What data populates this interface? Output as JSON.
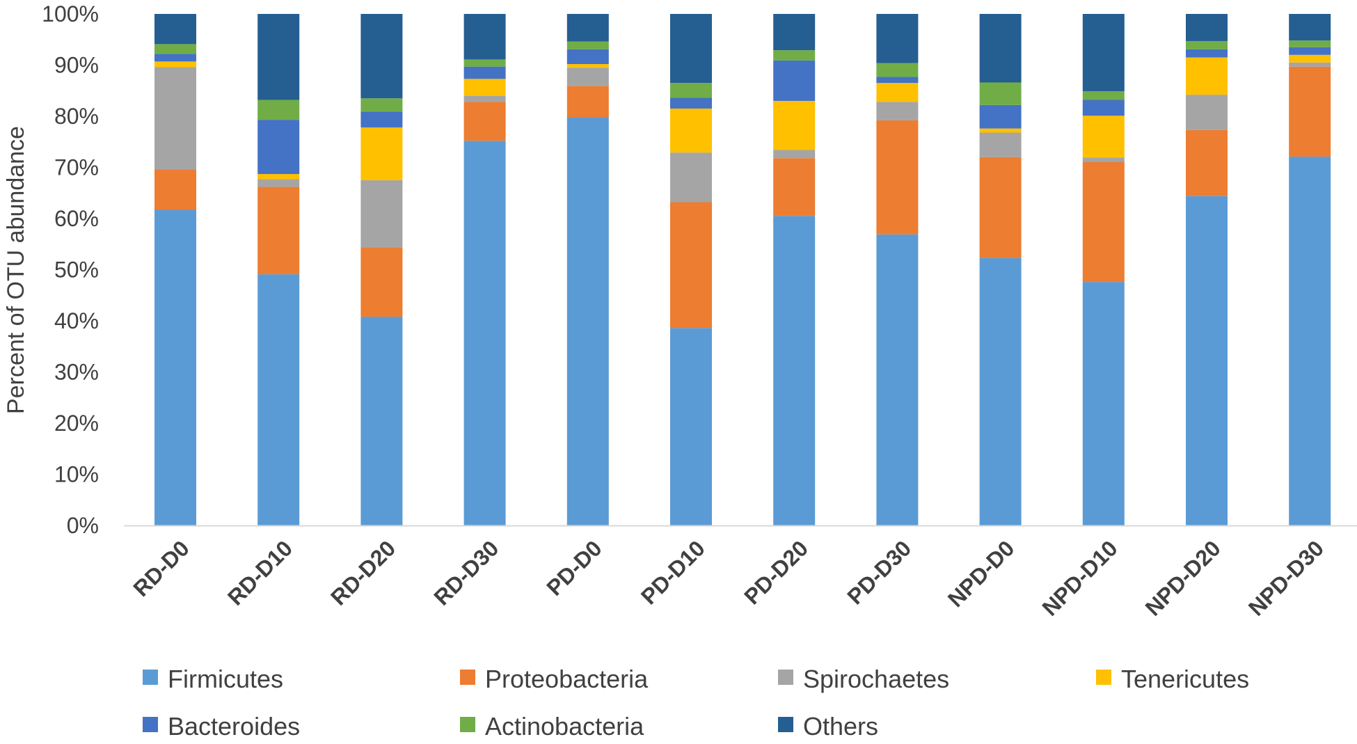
{
  "chart_data": {
    "type": "bar",
    "stacked": true,
    "title": "",
    "xlabel": "",
    "ylabel": "Percent of OTU abundance",
    "ylim": [
      0,
      100
    ],
    "yticks": [
      "0%",
      "10%",
      "20%",
      "30%",
      "40%",
      "50%",
      "60%",
      "70%",
      "80%",
      "90%",
      "100%"
    ],
    "grid": false,
    "legend_position": "bottom",
    "categories": [
      "RD-D0",
      "RD-D10",
      "RD-D20",
      "RD-D30",
      "PD-D0",
      "PD-D10",
      "PD-D20",
      "PD-D30",
      "NPD-D0",
      "NPD-D10",
      "NPD-D20",
      "NPD-D30"
    ],
    "series": [
      {
        "name": "Firmicutes",
        "color": "#5B9BD5",
        "values": [
          61.7,
          49.1,
          40.8,
          75.2,
          79.8,
          38.6,
          60.5,
          56.9,
          52.3,
          47.6,
          64.4,
          72.1
        ]
      },
      {
        "name": "Proteobacteria",
        "color": "#ED7D31",
        "values": [
          7.9,
          17.1,
          13.6,
          7.6,
          6.1,
          24.6,
          11.3,
          22.3,
          19.7,
          23.5,
          12.9,
          17.6
        ]
      },
      {
        "name": "Spirochaetes",
        "color": "#A5A5A5",
        "values": [
          20.0,
          1.5,
          13.1,
          1.2,
          3.6,
          9.7,
          1.6,
          3.6,
          4.8,
          0.8,
          6.9,
          0.8
        ]
      },
      {
        "name": "Tenericutes",
        "color": "#FFC000",
        "values": [
          1.1,
          1.0,
          10.3,
          3.3,
          0.7,
          8.6,
          9.6,
          3.7,
          0.8,
          8.2,
          7.3,
          1.5
        ]
      },
      {
        "name": "Bacteroides",
        "color": "#4472C4",
        "values": [
          1.5,
          10.6,
          3.1,
          2.4,
          2.9,
          2.1,
          7.9,
          1.2,
          4.6,
          3.1,
          1.6,
          1.5
        ]
      },
      {
        "name": "Actinobacteria",
        "color": "#70AD47",
        "values": [
          1.9,
          3.9,
          2.6,
          1.4,
          1.5,
          2.9,
          2.0,
          2.7,
          4.4,
          1.7,
          1.6,
          1.3
        ]
      },
      {
        "name": "Others",
        "color": "#255E91",
        "values": [
          5.9,
          16.8,
          16.5,
          8.9,
          5.4,
          13.5,
          7.1,
          9.6,
          13.4,
          15.1,
          5.3,
          5.2
        ]
      }
    ]
  }
}
